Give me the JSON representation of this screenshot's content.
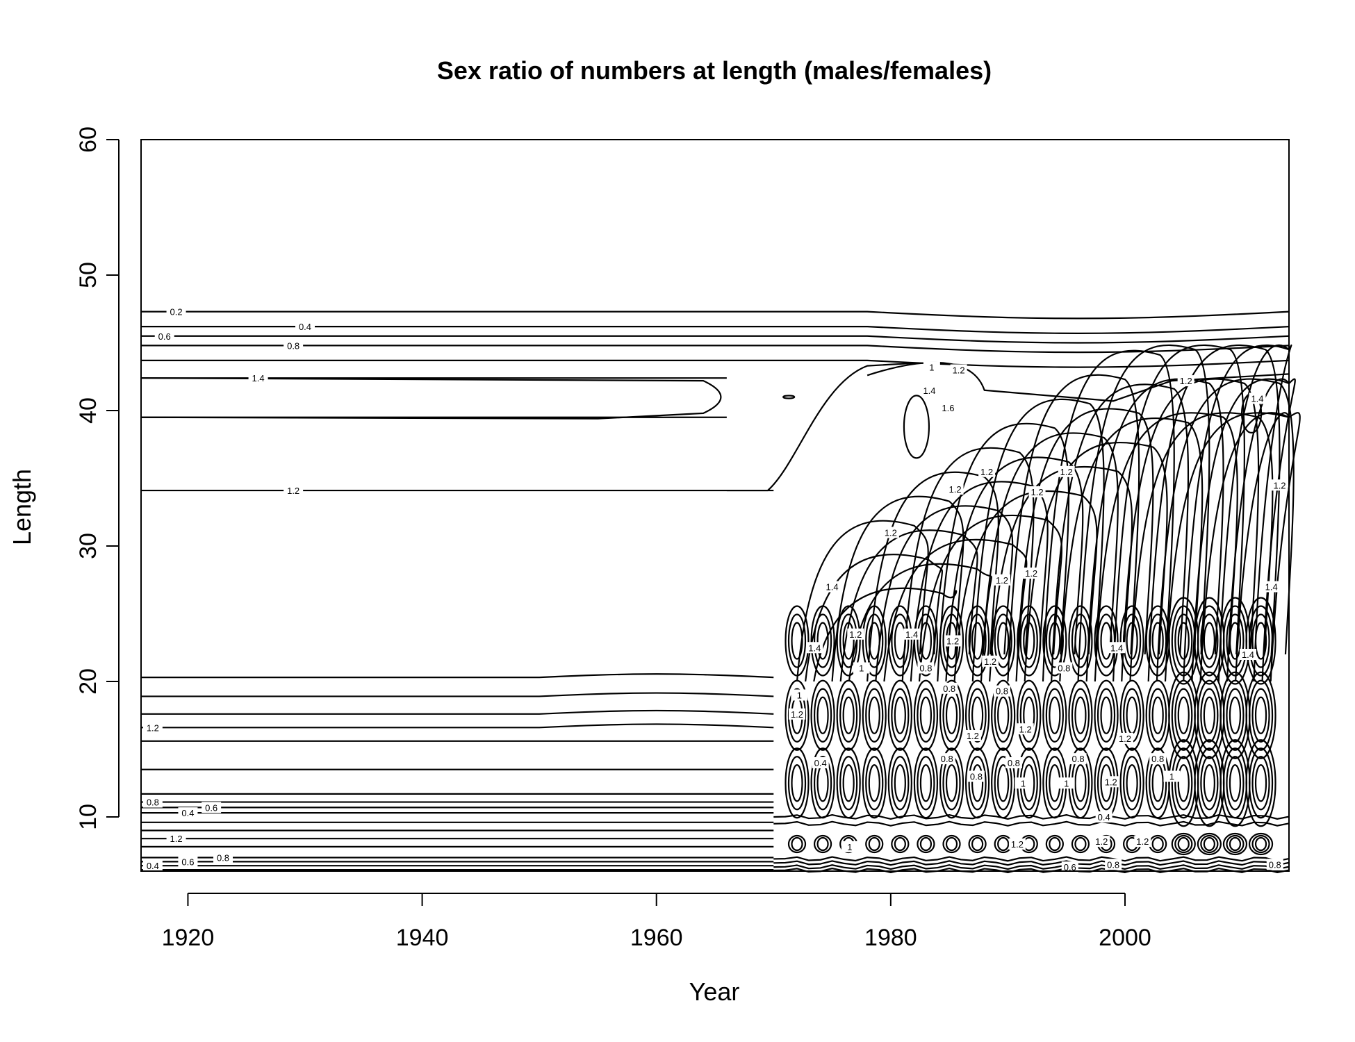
{
  "chart_data": {
    "type": "contour",
    "title": "Sex ratio of numbers at length (males/females)",
    "xlabel": "Year",
    "ylabel": "Length",
    "xlim": [
      1916,
      2014
    ],
    "ylim": [
      6,
      60
    ],
    "xticks": [
      1920,
      1940,
      1960,
      1980,
      2000
    ],
    "yticks": [
      10,
      20,
      30,
      40,
      50,
      60
    ],
    "grid": false,
    "legend": "none",
    "contour_levels": [
      0.2,
      0.4,
      0.6,
      0.8,
      1,
      1.2,
      1.4,
      1.6
    ],
    "horizontal_contours_pre_1970": [
      {
        "length": 47.3,
        "level": "0.2",
        "label_year": 1919
      },
      {
        "length": 46.2,
        "level": "0.4",
        "label_year": 1930
      },
      {
        "length": 45.5,
        "level": "0.6",
        "label_year": 1918
      },
      {
        "length": 44.8,
        "level": "0.8",
        "label_year": 1929
      },
      {
        "length": 43.7,
        "level": "",
        "label_year": null
      },
      {
        "length": 42.4,
        "level": "1.4",
        "label_year": 1926
      },
      {
        "length": 39.5,
        "level": "",
        "label_year": null
      },
      {
        "length": 34.1,
        "level": "1.2",
        "label_year": 1929
      },
      {
        "length": 20.3,
        "level": "",
        "label_year": null
      },
      {
        "length": 18.9,
        "level": "",
        "label_year": null
      },
      {
        "length": 17.6,
        "level": "",
        "label_year": null
      },
      {
        "length": 16.6,
        "level": "1.2",
        "label_year": 1917
      },
      {
        "length": 15.6,
        "level": "",
        "label_year": null
      },
      {
        "length": 13.5,
        "level": "",
        "label_year": null
      },
      {
        "length": 11.7,
        "level": "",
        "label_year": null
      },
      {
        "length": 11.1,
        "level": "0.8",
        "label_year": 1917
      },
      {
        "length": 10.7,
        "level": "0.6",
        "label_year": 1922
      },
      {
        "length": 10.3,
        "level": "0.4",
        "label_year": 1920
      },
      {
        "length": 9.6,
        "level": "",
        "label_year": null
      },
      {
        "length": 9.0,
        "level": "",
        "label_year": null
      },
      {
        "length": 8.4,
        "level": "1.2",
        "label_year": 1919
      },
      {
        "length": 7.8,
        "level": "",
        "label_year": null
      },
      {
        "length": 7.0,
        "level": "0.8",
        "label_year": 1923
      },
      {
        "length": 6.7,
        "level": "0.6",
        "label_year": 1920
      },
      {
        "length": 6.4,
        "level": "0.4",
        "label_year": 1917
      },
      {
        "length": 6.1,
        "level": "",
        "label_year": null
      }
    ],
    "cohort_ridge_start_years": [
      1972,
      1975,
      1978,
      1981,
      1984,
      1987,
      1990,
      1993,
      1996,
      1999,
      2002,
      2005,
      2008,
      2011
    ],
    "scattered_labels": [
      {
        "text": "1",
        "x": 1983.5,
        "y": 43.2
      },
      {
        "text": "1.2",
        "x": 1985.8,
        "y": 43.0
      },
      {
        "text": "1.4",
        "x": 1983.3,
        "y": 41.5
      },
      {
        "text": "1.6",
        "x": 1984.9,
        "y": 40.2
      },
      {
        "text": "1.2",
        "x": 2005.2,
        "y": 42.2
      },
      {
        "text": "1.4",
        "x": 2011.3,
        "y": 40.9
      },
      {
        "text": "1.2",
        "x": 1988.2,
        "y": 35.5
      },
      {
        "text": "1.2",
        "x": 1992.5,
        "y": 34.0
      },
      {
        "text": "1.2",
        "x": 1995.0,
        "y": 35.5
      },
      {
        "text": "1.2",
        "x": 1985.5,
        "y": 34.2
      },
      {
        "text": "1.2",
        "x": 2013.2,
        "y": 34.5
      },
      {
        "text": "1.2",
        "x": 1980.0,
        "y": 31.0
      },
      {
        "text": "1.4",
        "x": 1975.0,
        "y": 27.0
      },
      {
        "text": "1.2",
        "x": 1989.5,
        "y": 27.5
      },
      {
        "text": "1.2",
        "x": 1992.0,
        "y": 28.0
      },
      {
        "text": "1.4",
        "x": 2012.5,
        "y": 27.0
      },
      {
        "text": "1.4",
        "x": 1981.8,
        "y": 23.5
      },
      {
        "text": "1.2",
        "x": 1977.0,
        "y": 23.5
      },
      {
        "text": "1.2",
        "x": 1985.3,
        "y": 23.0
      },
      {
        "text": "1.2",
        "x": 1988.5,
        "y": 21.5
      },
      {
        "text": "1.4",
        "x": 1999.3,
        "y": 22.5
      },
      {
        "text": "0.8",
        "x": 1983.0,
        "y": 21.0
      },
      {
        "text": "0.8",
        "x": 1994.8,
        "y": 21.0
      },
      {
        "text": "1.4",
        "x": 2010.5,
        "y": 22.0
      },
      {
        "text": "1.4",
        "x": 1973.5,
        "y": 22.5
      },
      {
        "text": "1",
        "x": 1977.5,
        "y": 21.0
      },
      {
        "text": "0.8",
        "x": 1985.0,
        "y": 19.5
      },
      {
        "text": "0.8",
        "x": 1989.5,
        "y": 19.3
      },
      {
        "text": "1",
        "x": 1972.2,
        "y": 19.0
      },
      {
        "text": "1.2",
        "x": 1972.0,
        "y": 17.6
      },
      {
        "text": "1.2",
        "x": 1987.0,
        "y": 16.0
      },
      {
        "text": "1.2",
        "x": 1991.5,
        "y": 16.5
      },
      {
        "text": "1.2",
        "x": 2000.0,
        "y": 15.8
      },
      {
        "text": "0.4",
        "x": 1974.0,
        "y": 14.0
      },
      {
        "text": "0.8",
        "x": 1984.8,
        "y": 14.3
      },
      {
        "text": "0.8",
        "x": 1996.0,
        "y": 14.3
      },
      {
        "text": "0.8",
        "x": 1990.5,
        "y": 14.0
      },
      {
        "text": "0.8",
        "x": 2002.8,
        "y": 14.3
      },
      {
        "text": "0.8",
        "x": 1987.3,
        "y": 13.0
      },
      {
        "text": "1",
        "x": 1991.3,
        "y": 12.5
      },
      {
        "text": "1",
        "x": 1995.0,
        "y": 12.5
      },
      {
        "text": "1",
        "x": 2004.0,
        "y": 13.0
      },
      {
        "text": "1.2",
        "x": 1998.8,
        "y": 12.6
      },
      {
        "text": "0.4",
        "x": 1998.2,
        "y": 10.0
      },
      {
        "text": "1.2",
        "x": 1990.8,
        "y": 8.0
      },
      {
        "text": "1.2",
        "x": 1998.0,
        "y": 8.2
      },
      {
        "text": "1.2",
        "x": 2001.5,
        "y": 8.2
      },
      {
        "text": "0.6",
        "x": 1995.3,
        "y": 6.3
      },
      {
        "text": "0.8",
        "x": 1999.0,
        "y": 6.5
      },
      {
        "text": "0.8",
        "x": 2012.8,
        "y": 6.5
      },
      {
        "text": "1",
        "x": 1976.5,
        "y": 7.8
      }
    ]
  }
}
